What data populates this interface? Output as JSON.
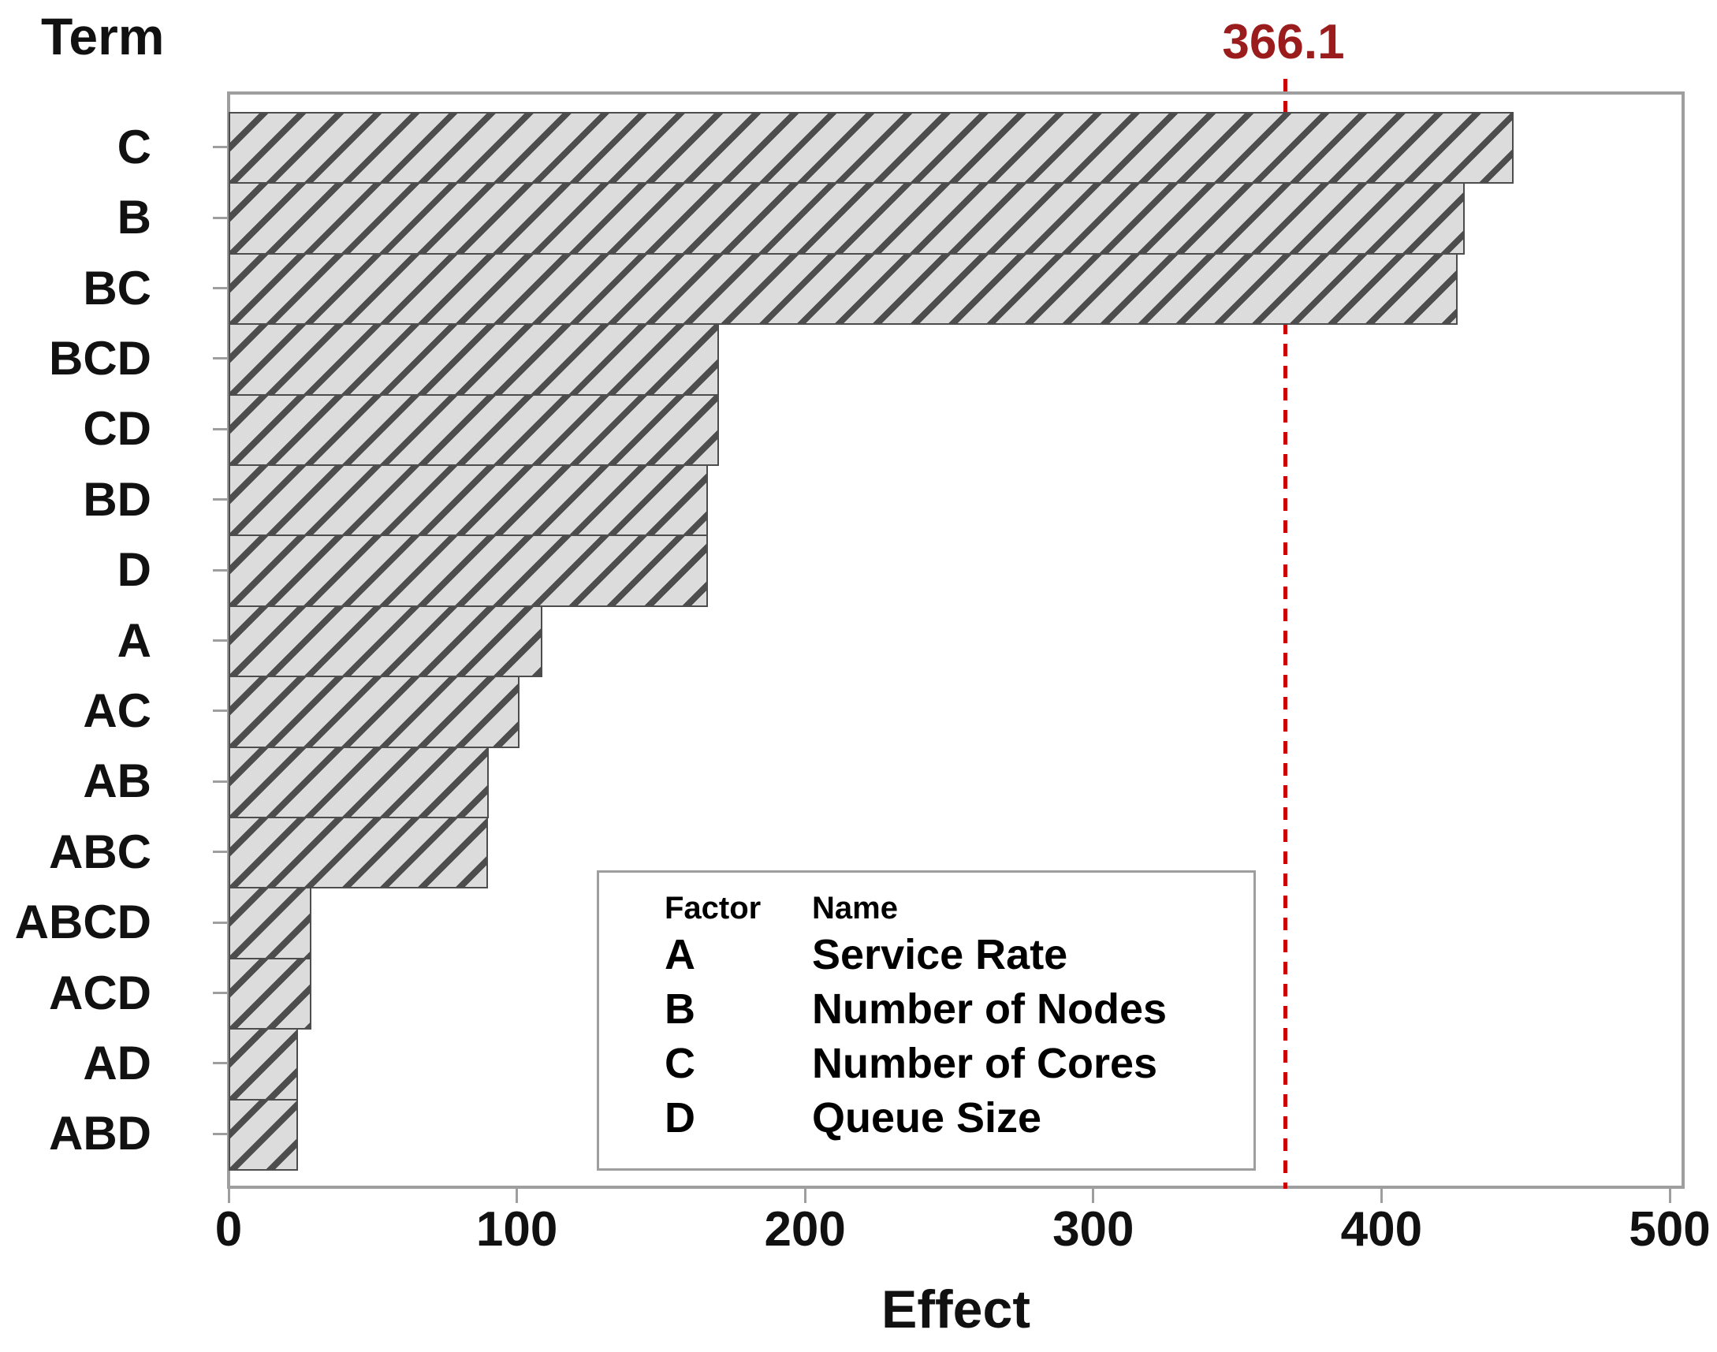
{
  "chart_data": {
    "type": "bar",
    "orientation": "horizontal",
    "y_axis_title": "Term",
    "x_axis_title": "Effect",
    "categories": [
      "C",
      "B",
      "BC",
      "BCD",
      "CD",
      "BD",
      "D",
      "A",
      "AC",
      "AB",
      "ABC",
      "ABCD",
      "ACD",
      "AD",
      "ABD"
    ],
    "values": [
      444.8,
      427.8,
      425.2,
      169.0,
      169.0,
      165.1,
      165.1,
      107.7,
      99.8,
      89.1,
      88.8,
      27.6,
      27.6,
      23.0,
      23.0
    ],
    "x_ticks": [
      0,
      100,
      200,
      300,
      400,
      500
    ],
    "xlim": [
      0,
      505
    ],
    "grid": false,
    "reference_line": {
      "value": 366.1,
      "label": "366.1"
    },
    "bar_style": {
      "fill": "#dcdcdc",
      "hatch": "diagonal-45",
      "hatch_color": "#4d4d4d"
    }
  },
  "legend": {
    "headers": {
      "factor": "Factor",
      "name": "Name"
    },
    "rows": [
      {
        "factor": "A",
        "name": "Service Rate"
      },
      {
        "factor": "B",
        "name": "Number of Nodes"
      },
      {
        "factor": "C",
        "name": "Number of Cores"
      },
      {
        "factor": "D",
        "name": "Queue Size"
      }
    ]
  },
  "colors": {
    "reference_line": "#cc0000",
    "reference_label": "#9b1c1c",
    "frame": "#9e9e9e",
    "bar_fill": "#dcdcdc",
    "hatch": "#4d4d4d",
    "text": "#111111"
  }
}
